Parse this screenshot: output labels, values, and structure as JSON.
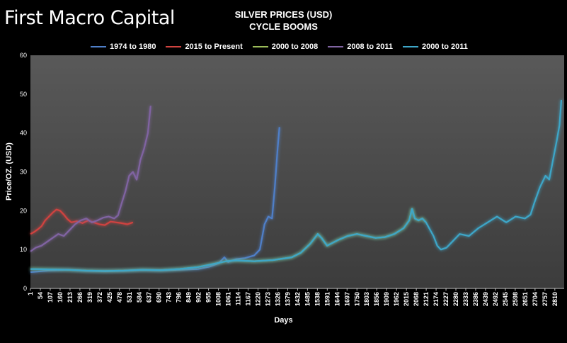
{
  "brand": "First Macro Capital",
  "chart_data": {
    "type": "line",
    "title": "SILVER PRICES (USD)",
    "subtitle": "CYCLE BOOMS",
    "xlabel": "Days",
    "ylabel": "Price/OZ. (USD)",
    "ylim": [
      0,
      60
    ],
    "yticks": [
      0,
      10,
      20,
      30,
      40,
      50,
      60
    ],
    "xlim": [
      1,
      2860
    ],
    "xticks": [
      1,
      54,
      107,
      160,
      213,
      266,
      319,
      372,
      425,
      478,
      531,
      584,
      637,
      690,
      743,
      796,
      849,
      902,
      955,
      1008,
      1061,
      1114,
      1167,
      1220,
      1273,
      1326,
      1379,
      1432,
      1485,
      1538,
      1591,
      1644,
      1697,
      1750,
      1803,
      1856,
      1909,
      1962,
      2015,
      2068,
      2121,
      2174,
      2227,
      2280,
      2333,
      2386,
      2439,
      2492,
      2545,
      2598,
      2651,
      2704,
      2757,
      2810
    ],
    "legend_position": "top",
    "series": [
      {
        "name": "1974 to 1980",
        "color": "#4f7fc8",
        "x": [
          1,
          100,
          200,
          300,
          400,
          500,
          600,
          700,
          800,
          900,
          960,
          1010,
          1040,
          1060,
          1100,
          1150,
          1200,
          1230,
          1255,
          1275,
          1295,
          1310,
          1325,
          1335
        ],
        "y": [
          4.2,
          4.6,
          4.8,
          4.5,
          4.4,
          4.5,
          4.7,
          4.6,
          4.8,
          5.0,
          5.6,
          6.5,
          8.0,
          6.8,
          7.5,
          7.8,
          8.5,
          10.0,
          16.5,
          18.5,
          18.0,
          26.0,
          36.0,
          41.5
        ]
      },
      {
        "name": "2015 to Present",
        "color": "#d0433f",
        "x": [
          1,
          20,
          40,
          60,
          80,
          100,
          120,
          140,
          160,
          180,
          200,
          220,
          250,
          280,
          310,
          340,
          370,
          400,
          430,
          460,
          490,
          520,
          550
        ],
        "y": [
          14.0,
          14.5,
          15.2,
          16.0,
          17.5,
          18.5,
          19.5,
          20.3,
          20.0,
          19.0,
          17.8,
          17.0,
          17.3,
          16.8,
          17.5,
          17.0,
          16.5,
          16.3,
          17.2,
          17.0,
          16.8,
          16.5,
          17.0
        ]
      },
      {
        "name": "2000 to 2008",
        "color": "#9bbb59",
        "x": [
          1,
          100,
          200,
          300,
          400,
          500,
          600,
          700,
          800,
          900,
          1000,
          1050,
          1100,
          1200,
          1300,
          1400,
          1450,
          1500,
          1540,
          1560,
          1590,
          1650,
          1700,
          1750,
          1800,
          1850,
          1900,
          1950,
          2000,
          2030,
          2045,
          2060,
          2080,
          2100,
          2120
        ],
        "y": [
          5.0,
          4.9,
          4.8,
          4.6,
          4.5,
          4.6,
          4.8,
          4.7,
          5.0,
          5.5,
          6.5,
          7.0,
          7.2,
          7.0,
          7.3,
          8.0,
          9.2,
          11.5,
          14.0,
          13.0,
          11.0,
          12.5,
          13.5,
          14.0,
          13.5,
          13.0,
          13.2,
          14.0,
          15.5,
          17.5,
          20.5,
          18.0,
          17.5,
          18.0,
          17.0
        ]
      },
      {
        "name": "2008 to 2011",
        "color": "#8064a2",
        "x": [
          1,
          30,
          60,
          90,
          120,
          150,
          180,
          210,
          240,
          270,
          300,
          330,
          360,
          390,
          420,
          450,
          470,
          490,
          510,
          530,
          550,
          570,
          590,
          610,
          630,
          645
        ],
        "y": [
          9.5,
          10.5,
          11.0,
          12.0,
          13.0,
          14.0,
          13.5,
          15.0,
          16.5,
          17.5,
          18.0,
          17.0,
          17.5,
          18.2,
          18.5,
          18.0,
          18.8,
          22.0,
          25.0,
          29.0,
          30.0,
          28.0,
          33.0,
          36.0,
          40.0,
          47.0
        ]
      },
      {
        "name": "2000 to 2011",
        "color": "#3ea6c8",
        "x": [
          1,
          100,
          200,
          300,
          400,
          500,
          600,
          700,
          800,
          900,
          1000,
          1050,
          1100,
          1200,
          1300,
          1400,
          1450,
          1500,
          1540,
          1560,
          1590,
          1650,
          1700,
          1750,
          1800,
          1850,
          1900,
          1950,
          2000,
          2030,
          2045,
          2060,
          2080,
          2100,
          2120,
          2160,
          2180,
          2200,
          2230,
          2260,
          2300,
          2350,
          2400,
          2450,
          2500,
          2550,
          2600,
          2650,
          2680,
          2700,
          2730,
          2760,
          2780,
          2800,
          2820,
          2835,
          2845
        ],
        "y": [
          5.0,
          4.9,
          4.8,
          4.6,
          4.5,
          4.6,
          4.8,
          4.7,
          5.0,
          5.5,
          6.5,
          7.0,
          7.2,
          7.0,
          7.3,
          8.0,
          9.2,
          11.5,
          14.0,
          13.0,
          11.0,
          12.5,
          13.5,
          14.0,
          13.5,
          13.0,
          13.2,
          14.0,
          15.5,
          17.5,
          20.5,
          18.0,
          17.5,
          18.0,
          17.0,
          13.5,
          11.0,
          10.0,
          10.5,
          12.0,
          14.0,
          13.5,
          15.5,
          17.0,
          18.5,
          17.0,
          18.5,
          18.0,
          19.0,
          22.0,
          26.0,
          29.0,
          28.0,
          33.0,
          38.0,
          42.0,
          48.5
        ]
      }
    ]
  }
}
